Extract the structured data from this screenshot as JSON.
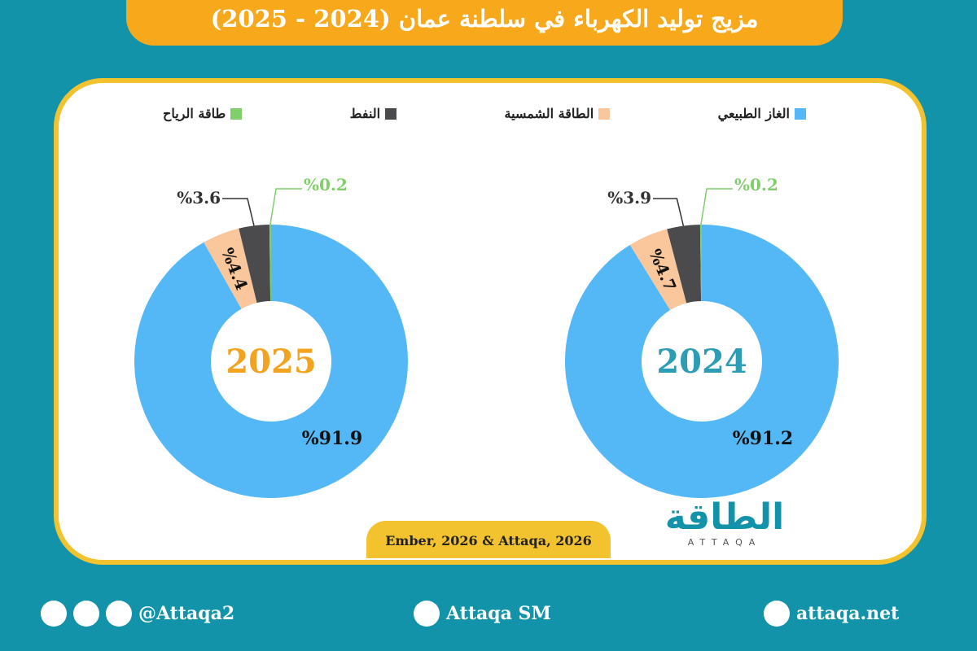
{
  "title": "مزيج توليد الكهرباء في سلطنة عمان (2024 - 2025)",
  "legend": {
    "labels": [
      "الغاز الطبيعي",
      "الطاقة الشمسية",
      "النفط",
      "طاقة الرياح"
    ],
    "colors": [
      "#55b8f6",
      "#f9c79b",
      "#4b4b4d",
      "#7fcf6b"
    ]
  },
  "chart_data": [
    {
      "type": "donut",
      "center_label": "2024",
      "center_color": "#2d9db5",
      "values": [
        91.2,
        4.7,
        3.9,
        0.2
      ],
      "value_labels": [
        "%91.2",
        "%4.7",
        "%3.9",
        "%0.2"
      ]
    },
    {
      "type": "donut",
      "center_label": "2025",
      "center_color": "#f2a31f",
      "values": [
        91.9,
        4.4,
        3.6,
        0.2
      ],
      "value_labels": [
        "%91.9",
        "%4.4",
        "%3.6",
        "%0.2"
      ]
    }
  ],
  "source": "Ember, 2026 & Attaqa, 2026",
  "logo": {
    "arabic": "الطاقة",
    "latin": "ATTAQA"
  },
  "footer": {
    "social": "@Attaqa2",
    "youtube": "Attaqa SM",
    "website": "attaqa.net"
  }
}
